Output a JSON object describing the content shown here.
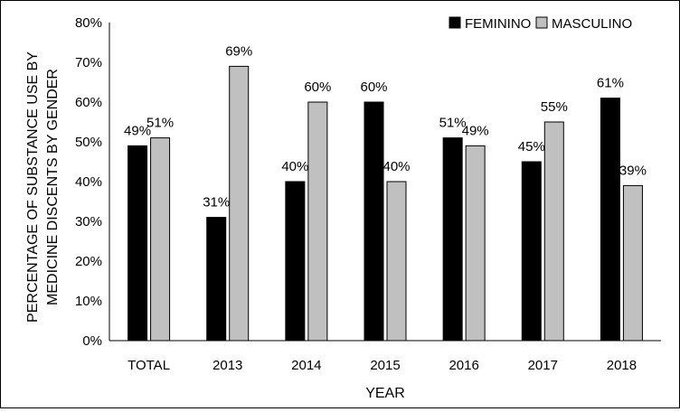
{
  "chart_data": {
    "type": "bar",
    "title": "",
    "xlabel": "YEAR",
    "ylabel_lines": [
      "PERCENTAGE OF SUBSTANCE USE BY",
      "MEDICINE DISCENTS BY GENDER"
    ],
    "categories": [
      "TOTAL",
      "2013",
      "2014",
      "2015",
      "2016",
      "2017",
      "2018"
    ],
    "series": [
      {
        "name": "FEMININO",
        "values": [
          49,
          31,
          40,
          60,
          51,
          45,
          61
        ],
        "color": "#000000"
      },
      {
        "name": "MASCULINO",
        "values": [
          51,
          69,
          60,
          40,
          49,
          55,
          39
        ],
        "color": "#c0c0c0"
      }
    ],
    "value_suffix": "%",
    "ylim": [
      0,
      80
    ],
    "yticks": [
      "0%",
      "10%",
      "20%",
      "30%",
      "40%",
      "50%",
      "60%",
      "70%",
      "80%"
    ],
    "grid": false,
    "legend_position": "top-right"
  }
}
